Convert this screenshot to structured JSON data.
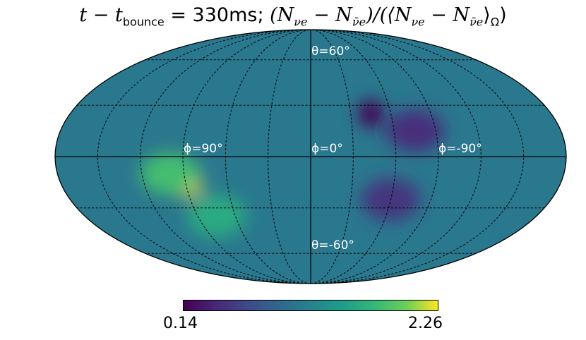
{
  "chart_data": {
    "type": "heatmap",
    "projection": "mollweide",
    "title": "t − t_bounce = 330ms; (N_νe − N_ν̄e)/(⟨N_νe − N_ν̄e⟩_Ω)",
    "title_parts": {
      "time_label": "t − t",
      "time_sub": "bounce",
      "time_value": " = 330ms; ",
      "ratio_open": "(N",
      "nu_e": "νe",
      "minus": " − N",
      "nu_e_bar": "ν̄e",
      "ratio_mid": ")/(⟨N",
      "ratio_close_a": " − N",
      "ratio_close_b": "⟩",
      "omega": "Ω",
      "ratio_end": ")"
    },
    "grid": true,
    "graticule_labels": [
      "θ=60°",
      "θ=-60°",
      "ϕ=90°",
      "ϕ=0°",
      "ϕ=-90°"
    ],
    "colormap": "viridis",
    "colorbar": {
      "min": 0.14,
      "max": 2.26,
      "min_label": "0.14",
      "max_label": "2.26",
      "orientation": "horizontal"
    },
    "features": [
      {
        "region": "bright peak",
        "lon_deg": 88,
        "lat_deg": -15,
        "value": 2.26
      },
      {
        "region": "bright band",
        "lon_deg": 100,
        "lat_deg": -10,
        "value": 1.8
      },
      {
        "region": "bright band",
        "lon_deg": 75,
        "lat_deg": -35,
        "value": 1.6
      },
      {
        "region": "dark minimum",
        "lon_deg": -45,
        "lat_deg": 25,
        "value": 0.14
      },
      {
        "region": "dark region",
        "lon_deg": -75,
        "lat_deg": 15,
        "value": 0.45
      },
      {
        "region": "dark region",
        "lon_deg": -60,
        "lat_deg": -25,
        "value": 0.5
      }
    ],
    "background_value": 1.1
  }
}
